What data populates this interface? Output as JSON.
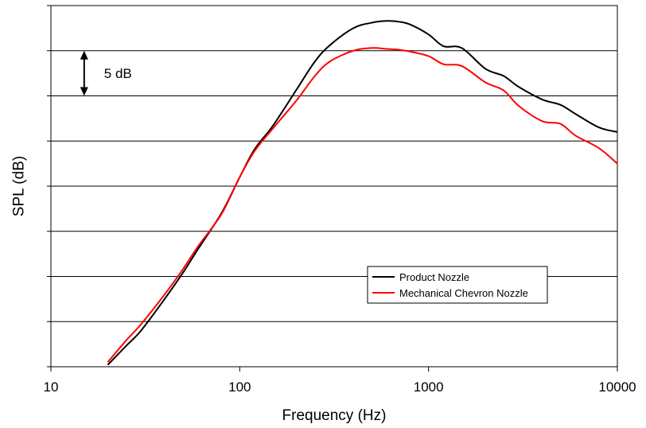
{
  "chart_data": {
    "type": "line",
    "title": "",
    "xlabel": "Frequency (Hz)",
    "ylabel": "SPL (dB)",
    "x_scale": "log",
    "xlim": [
      10,
      10000
    ],
    "x_ticks": [
      10,
      100,
      1000,
      10000
    ],
    "x_tick_labels": [
      "10",
      "100",
      "1000",
      "10000"
    ],
    "ylim": [
      0,
      40
    ],
    "y_gridlines": [
      5,
      10,
      15,
      20,
      25,
      30,
      35,
      40
    ],
    "grid": "horizontal",
    "legend_position": "lower-right",
    "annotation": {
      "text": "5 dB",
      "from": 30,
      "to": 35,
      "at_x": 15
    },
    "series": [
      {
        "name": "Product Nozzle",
        "color": "#000000",
        "x": [
          20,
          25,
          30,
          40,
          50,
          60,
          80,
          100,
          120,
          150,
          200,
          250,
          300,
          400,
          500,
          600,
          700,
          800,
          1000,
          1200,
          1500,
          2000,
          2500,
          3000,
          4000,
          5000,
          6000,
          8000,
          10000
        ],
        "y": [
          0.2,
          2.3,
          4.0,
          7.5,
          10.4,
          13.0,
          17.0,
          21.0,
          24.1,
          26.7,
          30.7,
          33.8,
          35.6,
          37.5,
          38.1,
          38.3,
          38.2,
          37.9,
          36.8,
          35.5,
          35.3,
          33.0,
          32.2,
          31.0,
          29.6,
          29.0,
          28.0,
          26.5,
          26.0
        ]
      },
      {
        "name": "Mechanical Chevron Nozzle",
        "color": "#ff0000",
        "x": [
          20,
          25,
          30,
          40,
          50,
          60,
          80,
          100,
          120,
          150,
          200,
          250,
          300,
          400,
          500,
          600,
          700,
          800,
          1000,
          1200,
          1500,
          2000,
          2500,
          3000,
          4000,
          5000,
          6000,
          8000,
          10000
        ],
        "y": [
          0.5,
          2.9,
          4.7,
          8.0,
          10.8,
          13.3,
          16.9,
          21.0,
          23.9,
          26.4,
          29.5,
          32.2,
          33.8,
          35.0,
          35.3,
          35.2,
          35.1,
          34.9,
          34.4,
          33.5,
          33.3,
          31.5,
          30.6,
          28.9,
          27.2,
          26.9,
          25.6,
          24.2,
          22.5
        ]
      }
    ]
  }
}
